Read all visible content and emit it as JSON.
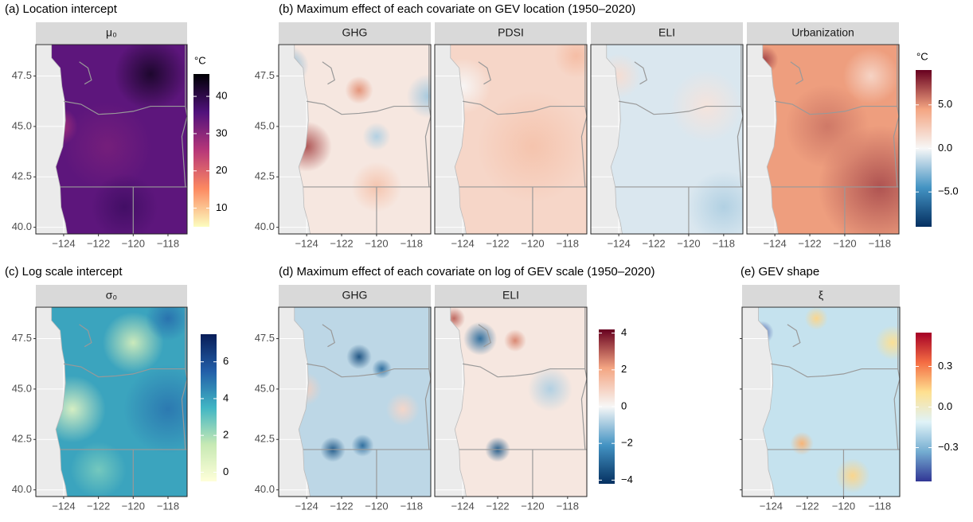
{
  "chart_data": [
    {
      "type": "map",
      "title": "(a) Location intercept",
      "facets": [
        "μ₀"
      ],
      "xlim": [
        -125.6,
        -116.9
      ],
      "ylim": [
        39.67,
        49.06
      ],
      "xticks": [
        {
          "value": -124,
          "label": "−124"
        },
        {
          "value": -122,
          "label": "−122"
        },
        {
          "value": -120,
          "label": "−120"
        },
        {
          "value": -118,
          "label": "−118"
        }
      ],
      "yticks": [
        {
          "value": 40,
          "label": "40.0"
        },
        42.5,
        {
          "value": 45,
          "label": "45.0"
        },
        47.5
      ],
      "colorbar": {
        "title": "°C",
        "lim": [
          5,
          46
        ],
        "ticks": [
          10,
          20,
          30,
          40
        ],
        "colors": [
          "#fcfdbf",
          "#fc8961",
          "#b73779",
          "#51127c",
          "#000004"
        ]
      }
    },
    {
      "type": "map",
      "title": "(b) Maximum effect of each covariate on GEV location (1950–2020)",
      "facets": [
        "GHG",
        "PDSI",
        "ELI",
        "Urbanization"
      ],
      "xlim": [
        -125.6,
        -116.9
      ],
      "ylim": [
        39.67,
        49.06
      ],
      "xticks": [
        {
          "value": -124,
          "label": "−124"
        },
        {
          "value": -122,
          "label": "−122"
        },
        {
          "value": -120,
          "label": "−120"
        },
        {
          "value": -118,
          "label": "−118"
        }
      ],
      "yticks": [
        {
          "value": 40,
          "label": "40.0"
        },
        42.5,
        {
          "value": 45,
          "label": "45.0"
        },
        47.5
      ],
      "colorbar": {
        "title": "°C",
        "lim": [
          -9,
          9
        ],
        "ticks": [
          {
            "value": -5,
            "label": "−5.0"
          },
          {
            "value": 0,
            "label": "0.0"
          },
          {
            "value": 5,
            "label": "5.0"
          }
        ],
        "colors": [
          "#053061",
          "#4393c3",
          "#f7f7f7",
          "#f4a582",
          "#67001f"
        ]
      }
    },
    {
      "type": "map",
      "title": "(c) Log scale intercept",
      "facets": [
        "σ₀"
      ],
      "xlim": [
        -125.6,
        -116.9
      ],
      "ylim": [
        39.67,
        49.06
      ],
      "xticks": [
        {
          "value": -124,
          "label": "−124"
        },
        {
          "value": -122,
          "label": "−122"
        },
        {
          "value": -120,
          "label": "−120"
        },
        {
          "value": -118,
          "label": "−118"
        }
      ],
      "yticks": [
        {
          "value": 40,
          "label": "40.0"
        },
        42.5,
        {
          "value": 45,
          "label": "45.0"
        },
        47.5
      ],
      "colorbar": {
        "lim": [
          -0.5,
          7.5
        ],
        "ticks": [
          0,
          2,
          4,
          6
        ],
        "colors": [
          "#ffffd9",
          "#c7e9b4",
          "#41b6c4",
          "#225ea8",
          "#081d58"
        ]
      }
    },
    {
      "type": "map",
      "title": "(d) Maximum effect of each covariate on log of GEV scale (1950–2020)",
      "facets": [
        "GHG",
        "ELI"
      ],
      "xlim": [
        -125.6,
        -116.9
      ],
      "ylim": [
        39.67,
        49.06
      ],
      "xticks": [
        {
          "value": -124,
          "label": "−124"
        },
        {
          "value": -122,
          "label": "−122"
        },
        {
          "value": -120,
          "label": "−120"
        },
        {
          "value": -118,
          "label": "−118"
        }
      ],
      "yticks": [
        {
          "value": 40,
          "label": "40.0"
        },
        42.5,
        {
          "value": 45,
          "label": "45.0"
        },
        47.5
      ],
      "colorbar": {
        "lim": [
          -4.2,
          4.2
        ],
        "ticks": [
          {
            "value": -4,
            "label": "−4"
          },
          {
            "value": -2,
            "label": "−2"
          },
          0,
          2,
          4
        ],
        "colors": [
          "#053061",
          "#4393c3",
          "#f7f7f7",
          "#f4a582",
          "#67001f"
        ]
      }
    },
    {
      "type": "map",
      "title": "(e) GEV shape",
      "facets": [
        "ξ"
      ],
      "xlim": [
        -125.6,
        -116.9
      ],
      "ylim": [
        39.67,
        49.06
      ],
      "xticks": [
        {
          "value": -124,
          "label": "−124"
        },
        {
          "value": -122,
          "label": "−122"
        },
        {
          "value": -120,
          "label": "−120"
        },
        {
          "value": -118,
          "label": "−118"
        }
      ],
      "yticks": [
        {
          "value": 40,
          "label": "40.0"
        },
        42.5,
        {
          "value": 45,
          "label": "45.0"
        },
        47.5
      ],
      "colorbar": {
        "lim": [
          -0.55,
          0.55
        ],
        "ticks": [
          {
            "value": -0.3,
            "label": "−0.3"
          },
          {
            "value": 0,
            "label": "0.0"
          },
          0.3
        ],
        "colors": [
          "#313695",
          "#74add1",
          "#e0f3f8",
          "#fee090",
          "#f46d43",
          "#a50026"
        ]
      }
    }
  ]
}
